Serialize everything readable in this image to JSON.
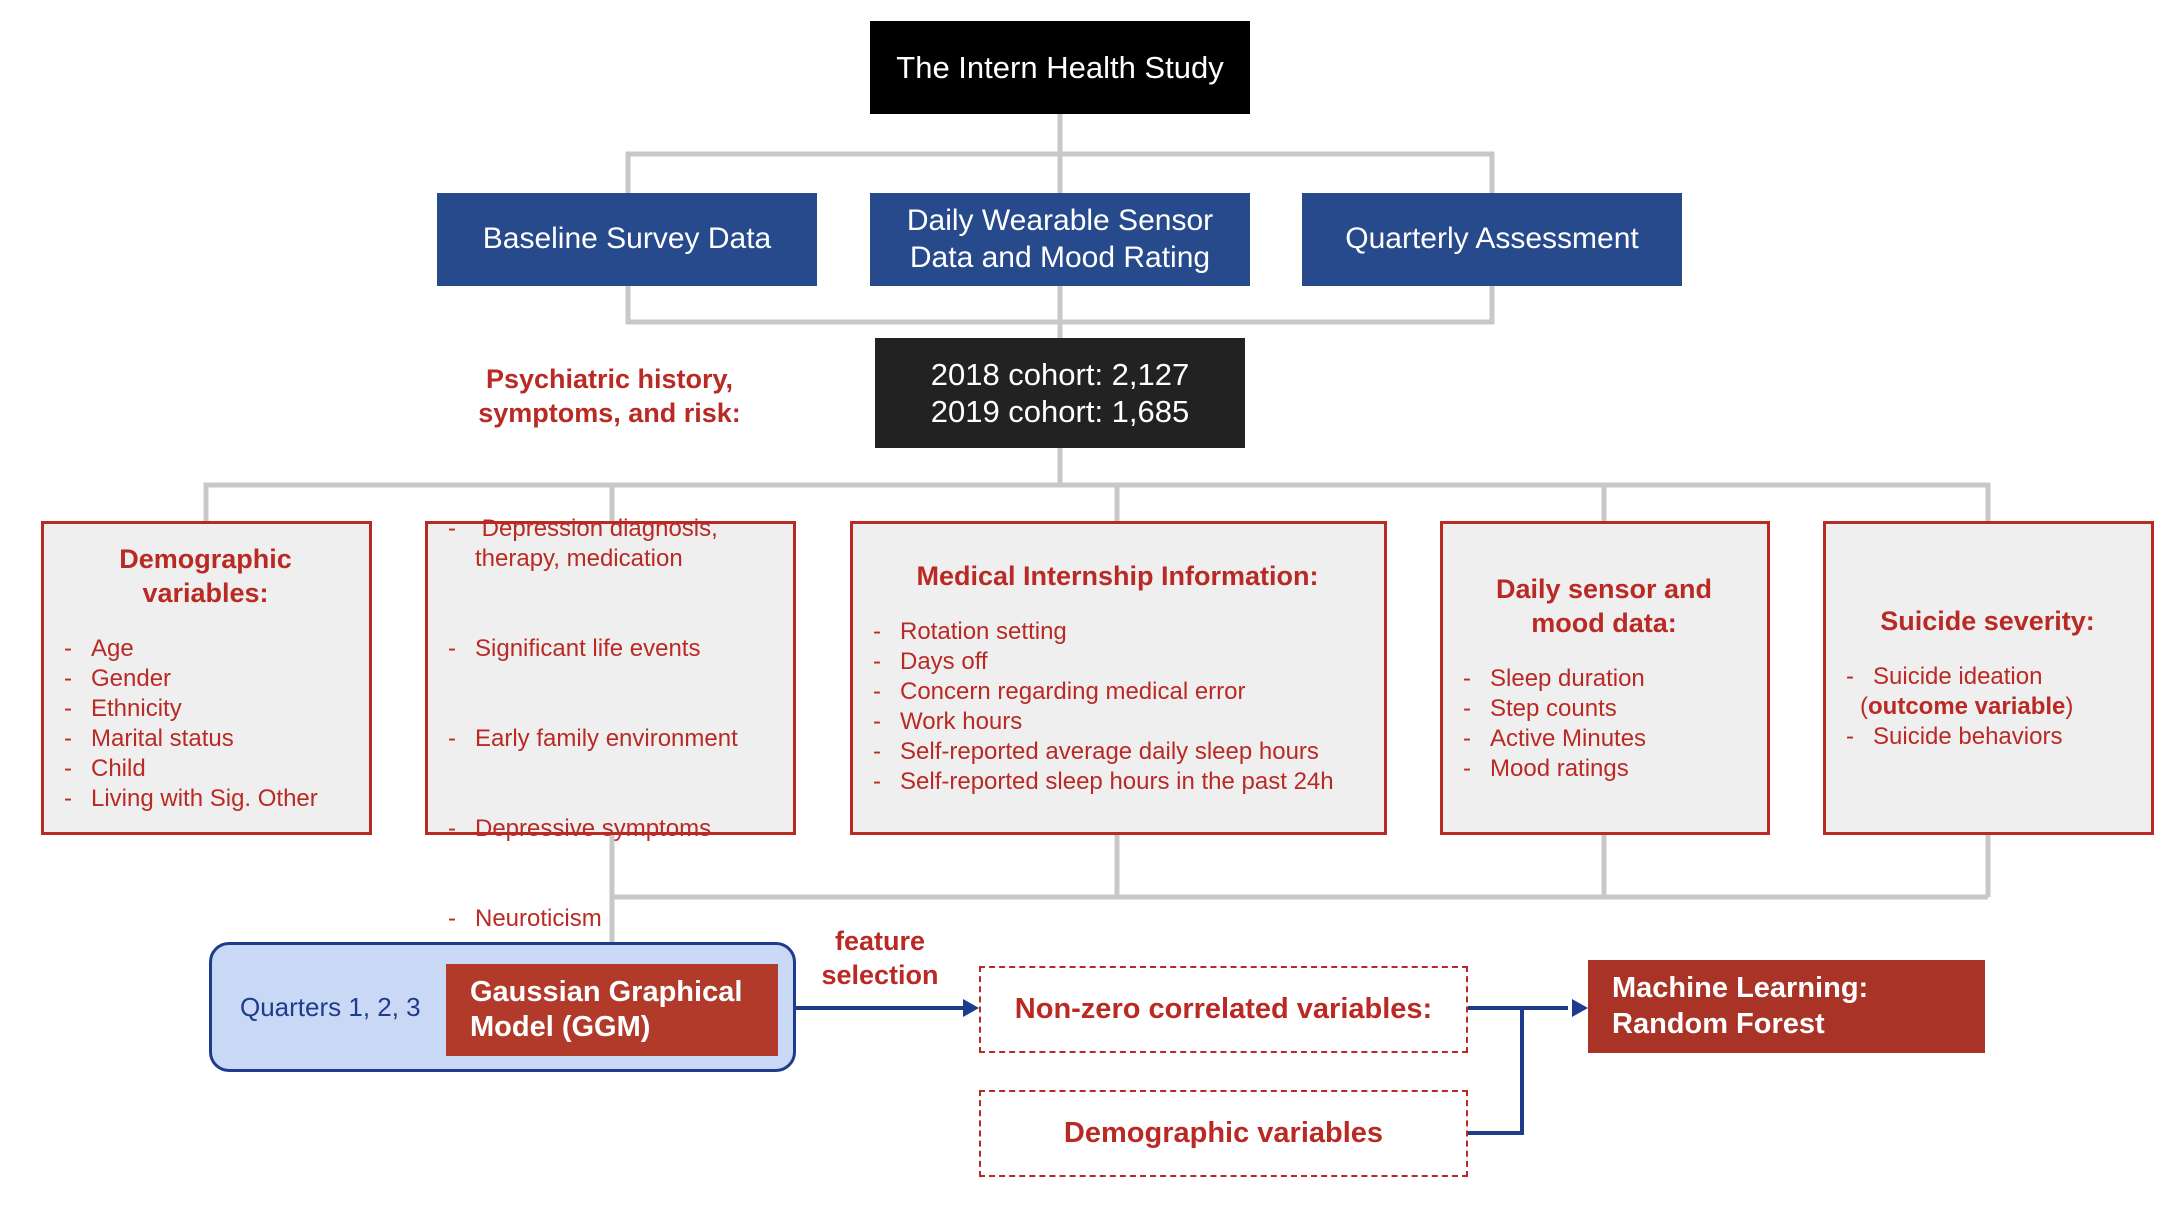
{
  "top": {
    "title": "The Intern Health Study"
  },
  "sources": [
    {
      "lines": [
        "Baseline Survey Data"
      ]
    },
    {
      "lines": [
        "Daily Wearable Sensor",
        "Data and Mood Rating"
      ]
    },
    {
      "lines": [
        "Quarterly Assessment"
      ]
    }
  ],
  "cohorts": {
    "line1": "2018 cohort: 2,127",
    "line2": "2019 cohort: 1,685"
  },
  "categories": [
    {
      "title": [
        "Demographic",
        "variables:"
      ],
      "items": [
        "Age",
        "Gender",
        "Ethnicity",
        "Marital status",
        "Child",
        "Living with Sig. Other"
      ]
    },
    {
      "title": [
        "Psychiatric history,",
        "symptoms, and risk:"
      ],
      "items": [
        " Depression diagnosis, therapy, medication",
        "Significant life events",
        "Early family environment",
        "Depressive symptoms",
        "Neuroticism"
      ]
    },
    {
      "title": [
        "Medical Internship Information:"
      ],
      "items": [
        "Rotation setting",
        "Days off",
        "Concern regarding medical error",
        "Work hours",
        "Self-reported average daily sleep hours",
        "Self-reported sleep hours in the past 24h"
      ]
    },
    {
      "title": [
        "Daily sensor and",
        "mood data:"
      ],
      "items": [
        "Sleep duration",
        "Step counts",
        "Active Minutes",
        "Mood ratings"
      ]
    },
    {
      "title": [
        "Suicide severity:"
      ],
      "items": [
        "Suicide ideation"
      ],
      "ideation_outcome": {
        "open": "(",
        "bold": "outcome variable",
        "close": ")"
      },
      "items_after": [
        "Suicide behaviors"
      ]
    }
  ],
  "ggm": {
    "quarters": "Quarters 1, 2, 3",
    "line1": "Gaussian Graphical",
    "line2": "Model (GGM)"
  },
  "feature_selection": {
    "line1": "feature",
    "line2": "selection"
  },
  "nonzero": "Non-zero correlated variables:",
  "demographic": "Demographic variables",
  "ml": {
    "line1": "Machine Learning:",
    "line2": "Random Forest"
  },
  "colors": {
    "black": "#000000",
    "dark": "#222222",
    "blue": "#264a8c",
    "red": "#b92a24",
    "light_gray": "#efefef",
    "light_blue": "#c9d8f4",
    "navy": "#1f3c8c",
    "connector": "#c8c8c8"
  }
}
